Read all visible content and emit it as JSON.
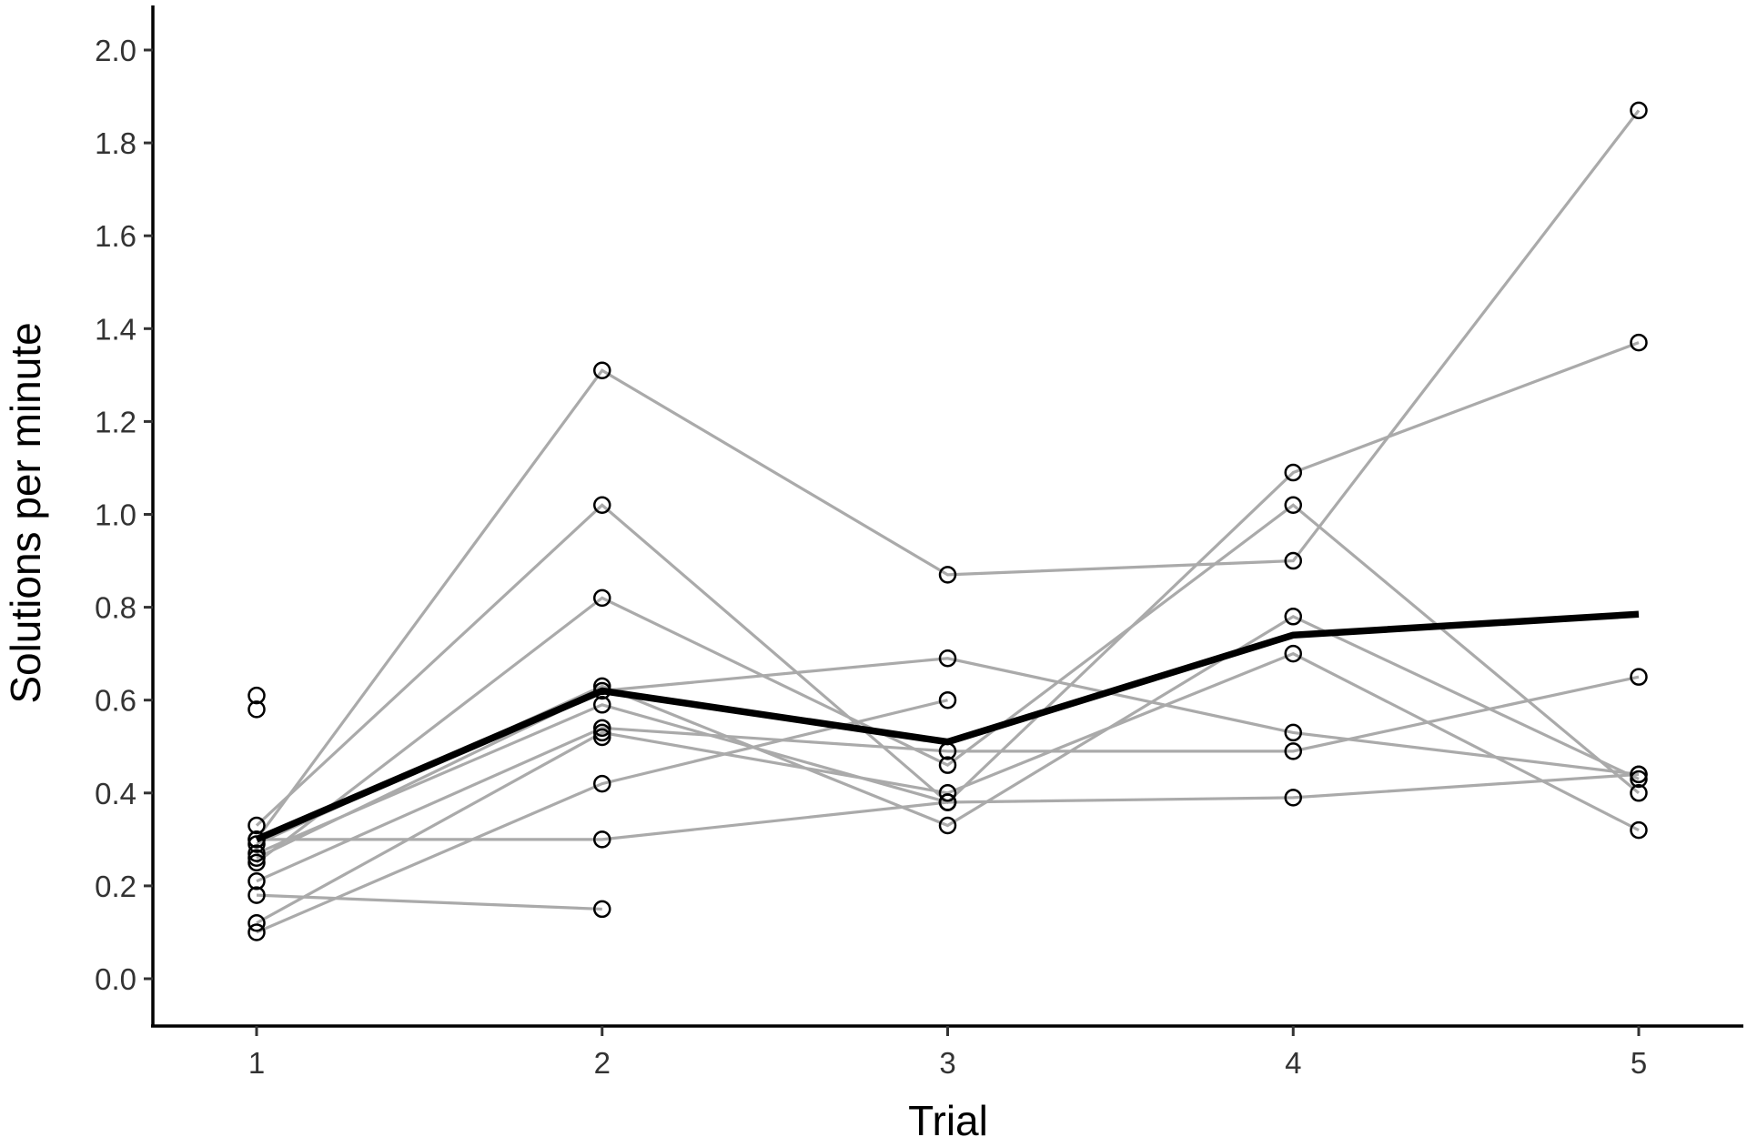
{
  "chart_data": {
    "type": "line",
    "xlabel": "Trial",
    "ylabel": "Solutions per minute",
    "x": [
      1,
      2,
      3,
      4,
      5
    ],
    "xlim": [
      0.7,
      5.3
    ],
    "ylim": [
      -0.1,
      2.1
    ],
    "yticks": [
      "0.0",
      "0.2",
      "0.4",
      "0.6",
      "0.8",
      "1.0",
      "1.2",
      "1.4",
      "1.6",
      "1.8",
      "2.0"
    ],
    "xticks": [
      "1",
      "2",
      "3",
      "4",
      "5"
    ],
    "grid": false,
    "legend": "none",
    "individual_color": "#aaaaaa",
    "mean_color": "#000000",
    "individuals": [
      {
        "values": [
          0.3,
          1.31,
          0.87,
          0.9,
          1.87
        ]
      },
      {
        "values": [
          0.33,
          1.02,
          0.38,
          1.09,
          1.37
        ]
      },
      {
        "values": [
          0.25,
          0.82,
          0.46,
          1.02,
          0.4
        ]
      },
      {
        "values": [
          0.29,
          0.63,
          0.33,
          0.78,
          0.43
        ]
      },
      {
        "values": [
          0.26,
          0.62,
          0.69,
          0.53,
          0.44
        ]
      },
      {
        "values": [
          0.12,
          0.53,
          0.4,
          0.7,
          0.32
        ]
      },
      {
        "values": [
          0.21,
          0.54,
          0.49,
          0.49,
          0.65
        ]
      },
      {
        "values": [
          0.27,
          0.59,
          0.38,
          0.39,
          0.44
        ]
      },
      {
        "values": [
          0.3,
          0.3,
          0.38
        ]
      },
      {
        "values": [
          0.1,
          0.42,
          0.6
        ]
      },
      {
        "values": [
          0.18,
          0.15
        ]
      }
    ],
    "extra_points": [
      {
        "x": 1,
        "y": 0.61
      },
      {
        "x": 1,
        "y": 0.58
      },
      {
        "x": 2,
        "y": 0.52
      }
    ],
    "mean": {
      "values": [
        0.3,
        0.62,
        0.51,
        0.74,
        0.785
      ]
    }
  }
}
